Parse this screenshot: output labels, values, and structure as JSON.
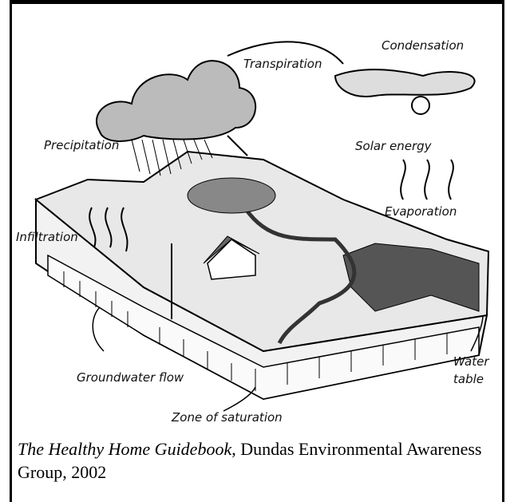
{
  "diagram": {
    "labels": {
      "transpiration": "Transpiration",
      "condensation": "Condensation",
      "precipitation": "Precipitation",
      "solar_energy": "Solar energy",
      "evaporation": "Evaporation",
      "infiltration": "Infiltration",
      "groundwater_flow": "Groundwater flow",
      "zone_of_saturation": "Zone of saturation",
      "water_table": [
        "Water",
        "table"
      ]
    },
    "caption": {
      "title": "The Healthy Home Guidebook",
      "text": ", Dundas Environmental Awareness Group, 2002"
    }
  }
}
